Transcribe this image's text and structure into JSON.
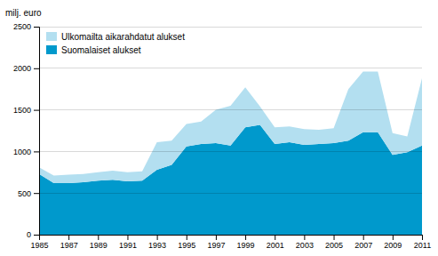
{
  "chart_data": {
    "type": "area",
    "stacked": true,
    "ylabel": "milj. euro",
    "x": [
      1985,
      1986,
      1987,
      1988,
      1989,
      1990,
      1991,
      1992,
      1993,
      1994,
      1995,
      1996,
      1997,
      1998,
      1999,
      2000,
      2001,
      2002,
      2003,
      2004,
      2005,
      2006,
      2007,
      2008,
      2009,
      2010,
      2011
    ],
    "series": [
      {
        "name": "Suomalaiset alukset",
        "color": "#0099cc",
        "values": [
          730,
          620,
          620,
          630,
          650,
          660,
          640,
          650,
          780,
          840,
          1060,
          1090,
          1100,
          1070,
          1290,
          1320,
          1090,
          1110,
          1080,
          1090,
          1100,
          1130,
          1230,
          1230,
          960,
          990,
          1070
        ]
      },
      {
        "name": "Ulkomailta aikarahdatut alukset",
        "color": "#b3dff0",
        "values": [
          80,
          90,
          100,
          100,
          100,
          110,
          110,
          110,
          330,
          290,
          270,
          270,
          400,
          480,
          480,
          220,
          200,
          190,
          190,
          170,
          180,
          620,
          730,
          730,
          260,
          190,
          810
        ]
      }
    ],
    "xlim": [
      1985,
      2011
    ],
    "xticks": [
      1985,
      1987,
      1989,
      1991,
      1993,
      1995,
      1997,
      1999,
      2001,
      2003,
      2005,
      2007,
      2009,
      2011
    ],
    "ylim": [
      0,
      2500
    ],
    "yticks": [
      0,
      500,
      1000,
      1500,
      2000,
      2500
    ],
    "grid": true,
    "legend": "upper left"
  }
}
